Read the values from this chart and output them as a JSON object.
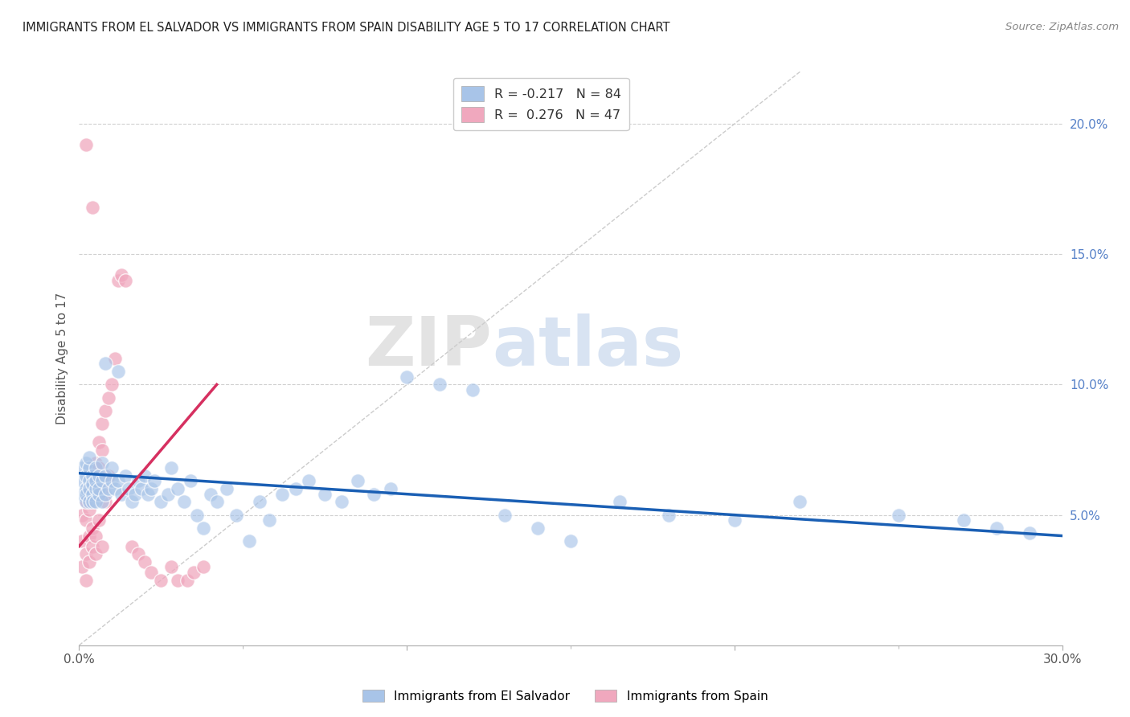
{
  "title": "IMMIGRANTS FROM EL SALVADOR VS IMMIGRANTS FROM SPAIN DISABILITY AGE 5 TO 17 CORRELATION CHART",
  "source": "Source: ZipAtlas.com",
  "ylabel": "Disability Age 5 to 17",
  "right_yticks": [
    "20.0%",
    "15.0%",
    "10.0%",
    "5.0%"
  ],
  "right_ytick_vals": [
    0.2,
    0.15,
    0.1,
    0.05
  ],
  "legend_blue_r": "-0.217",
  "legend_blue_n": "84",
  "legend_pink_r": "0.276",
  "legend_pink_n": "47",
  "blue_color": "#a8c4e8",
  "pink_color": "#f0a8be",
  "blue_line_color": "#1a5fb4",
  "pink_line_color": "#d63060",
  "diag_line_color": "#cccccc",
  "watermark_zip": "ZIP",
  "watermark_atlas": "atlas",
  "xmin": 0.0,
  "xmax": 0.3,
  "ymin": 0.0,
  "ymax": 0.22,
  "blue_scatter_x": [
    0.001,
    0.001,
    0.001,
    0.002,
    0.002,
    0.002,
    0.002,
    0.002,
    0.003,
    0.003,
    0.003,
    0.003,
    0.003,
    0.004,
    0.004,
    0.004,
    0.004,
    0.005,
    0.005,
    0.005,
    0.005,
    0.006,
    0.006,
    0.006,
    0.007,
    0.007,
    0.007,
    0.008,
    0.008,
    0.009,
    0.01,
    0.01,
    0.011,
    0.012,
    0.013,
    0.014,
    0.015,
    0.016,
    0.017,
    0.018,
    0.019,
    0.02,
    0.021,
    0.022,
    0.023,
    0.025,
    0.027,
    0.028,
    0.03,
    0.032,
    0.034,
    0.036,
    0.038,
    0.04,
    0.042,
    0.045,
    0.048,
    0.052,
    0.055,
    0.058,
    0.062,
    0.066,
    0.07,
    0.075,
    0.08,
    0.085,
    0.09,
    0.095,
    0.1,
    0.11,
    0.12,
    0.13,
    0.14,
    0.15,
    0.165,
    0.18,
    0.2,
    0.22,
    0.25,
    0.27,
    0.28,
    0.29,
    0.008,
    0.012
  ],
  "blue_scatter_y": [
    0.063,
    0.058,
    0.068,
    0.06,
    0.055,
    0.065,
    0.07,
    0.058,
    0.063,
    0.055,
    0.06,
    0.068,
    0.072,
    0.058,
    0.065,
    0.062,
    0.055,
    0.06,
    0.068,
    0.055,
    0.063,
    0.058,
    0.065,
    0.06,
    0.055,
    0.063,
    0.07,
    0.058,
    0.065,
    0.06,
    0.063,
    0.068,
    0.06,
    0.063,
    0.058,
    0.065,
    0.06,
    0.055,
    0.058,
    0.063,
    0.06,
    0.065,
    0.058,
    0.06,
    0.063,
    0.055,
    0.058,
    0.068,
    0.06,
    0.055,
    0.063,
    0.05,
    0.045,
    0.058,
    0.055,
    0.06,
    0.05,
    0.04,
    0.055,
    0.048,
    0.058,
    0.06,
    0.063,
    0.058,
    0.055,
    0.063,
    0.058,
    0.06,
    0.103,
    0.1,
    0.098,
    0.05,
    0.045,
    0.04,
    0.055,
    0.05,
    0.048,
    0.055,
    0.05,
    0.048,
    0.045,
    0.043,
    0.108,
    0.105
  ],
  "pink_scatter_x": [
    0.001,
    0.001,
    0.001,
    0.002,
    0.002,
    0.002,
    0.002,
    0.003,
    0.003,
    0.003,
    0.003,
    0.004,
    0.004,
    0.004,
    0.004,
    0.005,
    0.005,
    0.005,
    0.005,
    0.006,
    0.006,
    0.006,
    0.007,
    0.007,
    0.007,
    0.007,
    0.008,
    0.008,
    0.009,
    0.009,
    0.01,
    0.011,
    0.012,
    0.013,
    0.014,
    0.016,
    0.018,
    0.02,
    0.022,
    0.025,
    0.028,
    0.03,
    0.033,
    0.035,
    0.038,
    0.002,
    0.004
  ],
  "pink_scatter_y": [
    0.04,
    0.05,
    0.03,
    0.048,
    0.055,
    0.035,
    0.025,
    0.052,
    0.06,
    0.042,
    0.032,
    0.058,
    0.065,
    0.038,
    0.045,
    0.06,
    0.07,
    0.042,
    0.035,
    0.068,
    0.078,
    0.048,
    0.075,
    0.085,
    0.06,
    0.038,
    0.09,
    0.055,
    0.095,
    0.065,
    0.1,
    0.11,
    0.14,
    0.142,
    0.14,
    0.038,
    0.035,
    0.032,
    0.028,
    0.025,
    0.03,
    0.025,
    0.025,
    0.028,
    0.03,
    0.192,
    0.168
  ],
  "blue_line_x": [
    0.0,
    0.3
  ],
  "blue_line_y": [
    0.066,
    0.042
  ],
  "pink_line_x": [
    0.0,
    0.042
  ],
  "pink_line_y": [
    0.038,
    0.1
  ],
  "diag_line_x": [
    0.0,
    0.22
  ],
  "diag_line_y": [
    0.0,
    0.22
  ]
}
